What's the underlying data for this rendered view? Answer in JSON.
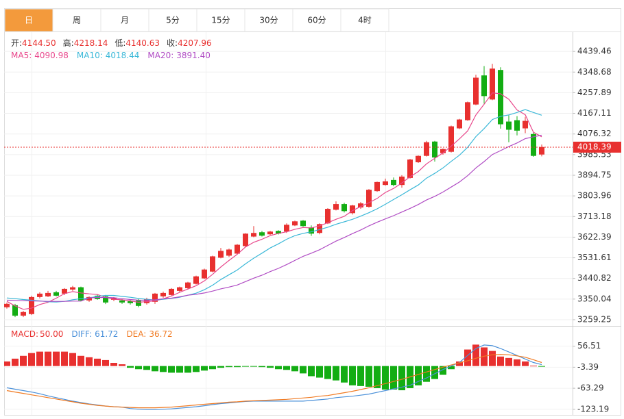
{
  "tabs": [
    "日",
    "周",
    "月",
    "5分",
    "15分",
    "30分",
    "60分",
    "4时"
  ],
  "active_tab": 0,
  "quote": [
    {
      "label": "开:",
      "value": "4144.50"
    },
    {
      "label": "高:",
      "value": "4218.14"
    },
    {
      "label": "低:",
      "value": "4140.63"
    },
    {
      "label": "收:",
      "value": "4207.96"
    }
  ],
  "chart_data": [
    {
      "type": "candlestick",
      "open": [
        3314,
        3323,
        3277,
        3284,
        3359,
        3362,
        3380,
        3374,
        3392,
        3402,
        3344,
        3365,
        3362,
        3347,
        3344,
        3341,
        3344,
        3332,
        3338,
        3362,
        3368,
        3386,
        3398,
        3417,
        3441,
        3471,
        3532,
        3541,
        3550,
        3583,
        3625,
        3644,
        3635,
        3650,
        3647,
        3674,
        3695,
        3665,
        3641,
        3683,
        3743,
        3768,
        3728,
        3753,
        3756,
        3825,
        3852,
        3874,
        3852,
        3883,
        3952,
        3980,
        4043,
        3992,
        3998,
        4101,
        4137,
        4206,
        4334,
        4228,
        4358,
        4131,
        4137,
        4101,
        4076,
        3986
      ],
      "high": [
        3335,
        3329,
        3298,
        3365,
        3380,
        3386,
        3386,
        3398,
        3408,
        3405,
        3362,
        3371,
        3368,
        3359,
        3350,
        3347,
        3350,
        3356,
        3377,
        3383,
        3398,
        3405,
        3426,
        3453,
        3484,
        3541,
        3575,
        3572,
        3592,
        3640,
        3671,
        3650,
        3650,
        3653,
        3683,
        3695,
        3698,
        3674,
        3683,
        3750,
        3780,
        3774,
        3765,
        3777,
        3834,
        3867,
        3880,
        3885,
        3895,
        3967,
        3982,
        4046,
        4046,
        4013,
        4113,
        4143,
        4219,
        4337,
        4375,
        4385,
        4370,
        4158,
        4155,
        4152,
        4085,
        4030
      ],
      "low": [
        3308,
        3271,
        3271,
        3280,
        3353,
        3359,
        3362,
        3368,
        3386,
        3340,
        3338,
        3347,
        3328,
        3341,
        3329,
        3326,
        3314,
        3326,
        3329,
        3356,
        3365,
        3380,
        3392,
        3414,
        3438,
        3468,
        3529,
        3535,
        3547,
        3580,
        3622,
        3625,
        3632,
        3634,
        3641,
        3671,
        3668,
        3628,
        3635,
        3680,
        3740,
        3731,
        3722,
        3747,
        3752,
        3822,
        3849,
        3846,
        3840,
        3880,
        3949,
        3977,
        3955,
        3985,
        3995,
        4098,
        4134,
        4203,
        4210,
        4225,
        4100,
        4040,
        4070,
        4080,
        3976,
        3978
      ],
      "close": [
        3329,
        3277,
        3293,
        3359,
        3374,
        3377,
        3365,
        3395,
        3402,
        3344,
        3359,
        3350,
        3335,
        3356,
        3335,
        3332,
        3320,
        3350,
        3374,
        3377,
        3395,
        3402,
        3423,
        3450,
        3480,
        3538,
        3562,
        3568,
        3589,
        3638,
        3641,
        3629,
        3647,
        3638,
        3677,
        3692,
        3671,
        3638,
        3680,
        3747,
        3768,
        3737,
        3762,
        3771,
        3831,
        3865,
        3868,
        3852,
        3889,
        3964,
        3980,
        4040,
        3973,
        4010,
        4110,
        4140,
        4216,
        4324,
        4243,
        4364,
        4119,
        4095,
        4091,
        4134,
        3980,
        4019
      ],
      "up_color": "#e8302f",
      "down_color": "#13ad13",
      "ylim": [
        3232.1,
        4524.2
      ],
      "yticks": [
        4439.46,
        4348.68,
        4257.89,
        4167.11,
        4076.32,
        3985.53,
        3894.75,
        3803.96,
        3713.18,
        3622.39,
        3531.61,
        3440.82,
        3350.04,
        3259.25
      ],
      "grid": true,
      "last_price": 4018.39,
      "last_price_color": "#e8302f",
      "series": [
        {
          "name": "MA5:",
          "legend_value": "4090.98",
          "color": "#e8478b",
          "values": [
            3340,
            3320,
            3305,
            3310,
            3326,
            3336,
            3354,
            3374,
            3383,
            3377,
            3373,
            3370,
            3358,
            3349,
            3347,
            3342,
            3336,
            3339,
            3342,
            3351,
            3363,
            3380,
            3394,
            3409,
            3430,
            3459,
            3491,
            3520,
            3547,
            3579,
            3600,
            3613,
            3629,
            3639,
            3646,
            3657,
            3665,
            3663,
            3672,
            3686,
            3701,
            3714,
            3739,
            3757,
            3774,
            3793,
            3819,
            3837,
            3861,
            3888,
            3911,
            3945,
            3969,
            3993,
            4023,
            4055,
            4090,
            4160,
            4207,
            4257,
            4253,
            4229,
            4182,
            4161,
            4084,
            4064
          ]
        },
        {
          "name": "MA10:",
          "legend_value": "4018.44",
          "color": "#3bb8d8",
          "values": [
            3355,
            3352,
            3348,
            3345,
            3342,
            3338,
            3337,
            3340,
            3347,
            3352,
            3355,
            3362,
            3366,
            3366,
            3362,
            3358,
            3353,
            3349,
            3346,
            3349,
            3353,
            3358,
            3367,
            3376,
            3391,
            3411,
            3436,
            3457,
            3478,
            3505,
            3530,
            3552,
            3575,
            3593,
            3613,
            3629,
            3639,
            3646,
            3656,
            3666,
            3679,
            3690,
            3701,
            3715,
            3730,
            3747,
            3767,
            3788,
            3809,
            3831,
            3852,
            3882,
            3903,
            3927,
            3956,
            3983,
            4018,
            4065,
            4100,
            4140,
            4154,
            4160,
            4171,
            4184,
            4171,
            4159
          ]
        },
        {
          "name": "MA20:",
          "legend_value": "3891.40",
          "color": "#b04cc4",
          "values": [
            3345,
            3344,
            3343,
            3342,
            3341,
            3340,
            3340,
            3340,
            3341,
            3341,
            3355,
            3357,
            3357,
            3356,
            3352,
            3348,
            3345,
            3345,
            3347,
            3351,
            3354,
            3360,
            3367,
            3371,
            3377,
            3385,
            3395,
            3403,
            3412,
            3427,
            3442,
            3455,
            3471,
            3485,
            3502,
            3520,
            3538,
            3552,
            3567,
            3586,
            3605,
            3621,
            3638,
            3654,
            3672,
            3688,
            3703,
            3717,
            3733,
            3749,
            3766,
            3786,
            3802,
            3821,
            3843,
            3865,
            3893,
            3927,
            3955,
            3986,
            4003,
            4021,
            4037,
            4056,
            4064,
            4071
          ]
        }
      ]
    },
    {
      "type": "macd",
      "name": "MACD:",
      "legend_value": "50.00",
      "legend_color": "#e8302f",
      "values": [
        13,
        21,
        29,
        37,
        41,
        41,
        41,
        41,
        37,
        29,
        25,
        21,
        17,
        9,
        5,
        -5,
        -9,
        -11,
        -15,
        -17,
        -19,
        -19,
        -19,
        -17,
        -13,
        -9,
        -5,
        -3,
        -3,
        -1,
        -1,
        -3,
        -5,
        -9,
        -11,
        -15,
        -21,
        -29,
        -33,
        -37,
        -41,
        -47,
        -55,
        -57,
        -59,
        -63,
        -67,
        -67,
        -69,
        -63,
        -55,
        -45,
        -37,
        -25,
        -9,
        13,
        47,
        61,
        53,
        43,
        27,
        23,
        19,
        13,
        1,
        -1
      ],
      "up_color": "#e8302f",
      "down_color": "#13ad13",
      "ylim": [
        -139.2,
        112.4
      ],
      "yticks": [
        56.51,
        -3.39,
        -63.29,
        -123.19
      ],
      "series": [
        {
          "name": "DIFF:",
          "legend_value": "61.72",
          "color": "#4a90d9",
          "values": [
            -62,
            -66,
            -70,
            -74,
            -79,
            -85,
            -90,
            -95,
            -100,
            -104,
            -108,
            -111,
            -114,
            -116,
            -117,
            -121,
            -123,
            -124,
            -124,
            -123,
            -122,
            -120,
            -118,
            -116,
            -113,
            -110,
            -107,
            -105,
            -103,
            -101,
            -100,
            -100,
            -100,
            -100,
            -100,
            -100,
            -100,
            -98,
            -96,
            -94,
            -90,
            -88,
            -86,
            -83,
            -80,
            -75,
            -70,
            -65,
            -60,
            -55,
            -44,
            -34,
            -22,
            -10,
            0,
            10,
            30,
            50,
            60,
            58,
            50,
            40,
            30,
            20,
            10,
            4
          ]
        },
        {
          "name": "DEA:",
          "legend_value": "36.72",
          "color": "#f07a22",
          "values": [
            -70,
            -74,
            -78,
            -82,
            -86,
            -90,
            -94,
            -98,
            -102,
            -106,
            -109,
            -112,
            -114,
            -116,
            -117,
            -118,
            -119,
            -119,
            -119,
            -118,
            -117,
            -115,
            -113,
            -111,
            -109,
            -107,
            -105,
            -103,
            -102,
            -100,
            -99,
            -98,
            -97,
            -96,
            -95,
            -93,
            -91,
            -89,
            -86,
            -84,
            -80,
            -76,
            -72,
            -67,
            -62,
            -56,
            -50,
            -44,
            -38,
            -31,
            -24,
            -17,
            -10,
            -3,
            3,
            9,
            15,
            22,
            28,
            32,
            33,
            32,
            29,
            25,
            18,
            10
          ]
        }
      ]
    }
  ]
}
